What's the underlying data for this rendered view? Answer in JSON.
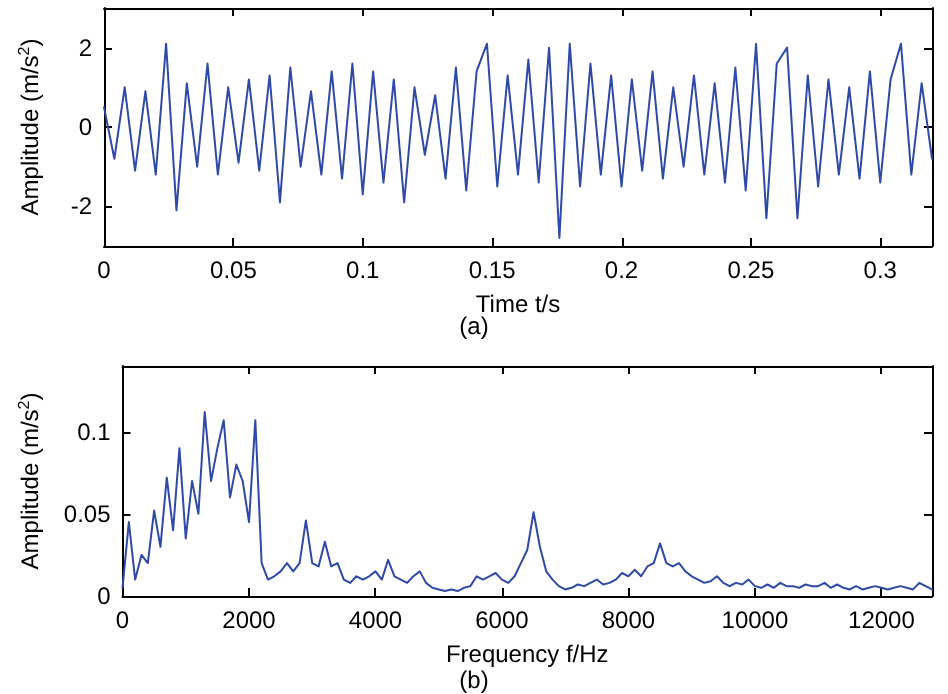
{
  "chart_data": [
    {
      "type": "line",
      "xlabel": "Time t/s",
      "ylabel": "Amplitude (m/s$^{2}$)",
      "annotations": [
        "(a)"
      ],
      "xlim": [
        0,
        0.32
      ],
      "ylim": [
        -3,
        3
      ],
      "xticks": [
        0,
        0.05,
        0.1,
        0.15,
        0.2,
        0.25,
        0.3
      ],
      "yticks": [
        -2,
        0,
        2
      ],
      "grid": false,
      "marker": "none",
      "line_style": "solid",
      "x": [
        0,
        0.004,
        0.008,
        0.012,
        0.016,
        0.02,
        0.024,
        0.028,
        0.032,
        0.036,
        0.04,
        0.044,
        0.048,
        0.052,
        0.056,
        0.06,
        0.064,
        0.068,
        0.072,
        0.076,
        0.08,
        0.084,
        0.088,
        0.092,
        0.096,
        0.1,
        0.104,
        0.108,
        0.112,
        0.116,
        0.12,
        0.124,
        0.128,
        0.132,
        0.136,
        0.14,
        0.144,
        0.148,
        0.152,
        0.156,
        0.16,
        0.164,
        0.168,
        0.172,
        0.176,
        0.18,
        0.184,
        0.188,
        0.192,
        0.196,
        0.2,
        0.204,
        0.208,
        0.212,
        0.216,
        0.22,
        0.224,
        0.228,
        0.232,
        0.236,
        0.24,
        0.244,
        0.248,
        0.252,
        0.256,
        0.26,
        0.264,
        0.268,
        0.272,
        0.276,
        0.28,
        0.284,
        0.288,
        0.292,
        0.296,
        0.3,
        0.304,
        0.308,
        0.312,
        0.316,
        0.32
      ],
      "series": [
        {
          "color": "#2e4aa6",
          "values": [
            0.5,
            -0.8,
            1.0,
            -1.1,
            0.9,
            -1.2,
            2.1,
            -2.1,
            1.1,
            -1.0,
            1.6,
            -1.2,
            1.0,
            -0.9,
            1.2,
            -1.1,
            1.3,
            -1.9,
            1.5,
            -1.0,
            0.9,
            -1.2,
            1.4,
            -1.3,
            1.6,
            -1.7,
            1.4,
            -1.4,
            1.2,
            -1.9,
            1.0,
            -0.7,
            0.8,
            -1.3,
            1.5,
            -1.6,
            1.4,
            2.1,
            -1.5,
            1.3,
            -1.2,
            1.7,
            -1.4,
            2.0,
            -2.8,
            2.1,
            -1.5,
            1.6,
            -1.2,
            1.3,
            -1.5,
            1.2,
            -1.1,
            1.4,
            -1.3,
            1.0,
            -1.0,
            1.3,
            -1.2,
            1.1,
            -1.4,
            1.5,
            -1.6,
            2.1,
            -2.3,
            1.6,
            2.0,
            -2.3,
            1.3,
            -1.5,
            1.2,
            -1.2,
            1.0,
            -1.3,
            1.4,
            -1.4,
            1.2,
            2.1,
            -1.2,
            1.1,
            -0.8
          ]
        }
      ]
    },
    {
      "type": "line",
      "xlabel": "Frequency f/Hz",
      "ylabel": "Amplitude (m/s$^{2}$)",
      "annotations": [
        "(b)"
      ],
      "xlim": [
        0,
        12800
      ],
      "ylim": [
        0,
        0.14
      ],
      "xticks": [
        0,
        2000,
        4000,
        6000,
        8000,
        10000,
        12000
      ],
      "yticks": [
        0,
        0.05,
        0.1
      ],
      "grid": false,
      "marker": "none",
      "line_style": "solid",
      "x": [
        0,
        100,
        200,
        300,
        400,
        500,
        600,
        700,
        800,
        900,
        1000,
        1100,
        1200,
        1300,
        1400,
        1500,
        1600,
        1700,
        1800,
        1900,
        2000,
        2100,
        2200,
        2300,
        2400,
        2500,
        2600,
        2700,
        2800,
        2900,
        3000,
        3100,
        3200,
        3300,
        3400,
        3500,
        3600,
        3700,
        3800,
        3900,
        4000,
        4100,
        4200,
        4300,
        4400,
        4500,
        4600,
        4700,
        4800,
        4900,
        5000,
        5100,
        5200,
        5300,
        5400,
        5500,
        5600,
        5700,
        5800,
        5900,
        6000,
        6100,
        6200,
        6300,
        6400,
        6500,
        6600,
        6700,
        6800,
        6900,
        7000,
        7100,
        7200,
        7300,
        7400,
        7500,
        7600,
        7700,
        7800,
        7900,
        8000,
        8100,
        8200,
        8300,
        8400,
        8500,
        8600,
        8700,
        8800,
        8900,
        9000,
        9100,
        9200,
        9300,
        9400,
        9500,
        9600,
        9700,
        9800,
        9900,
        10000,
        10100,
        10200,
        10300,
        10400,
        10500,
        10600,
        10700,
        10800,
        10900,
        11000,
        11100,
        11200,
        11300,
        11400,
        11500,
        11600,
        11700,
        11800,
        11900,
        12000,
        12100,
        12200,
        12300,
        12400,
        12500,
        12600,
        12700,
        12800
      ],
      "series": [
        {
          "color": "#2e4aa6",
          "values": [
            0.005,
            0.045,
            0.01,
            0.025,
            0.02,
            0.052,
            0.03,
            0.072,
            0.04,
            0.09,
            0.035,
            0.07,
            0.05,
            0.112,
            0.07,
            0.09,
            0.107,
            0.06,
            0.08,
            0.07,
            0.045,
            0.107,
            0.02,
            0.01,
            0.012,
            0.015,
            0.02,
            0.015,
            0.02,
            0.046,
            0.02,
            0.018,
            0.033,
            0.018,
            0.02,
            0.01,
            0.008,
            0.012,
            0.01,
            0.012,
            0.015,
            0.01,
            0.022,
            0.012,
            0.01,
            0.008,
            0.012,
            0.015,
            0.008,
            0.005,
            0.004,
            0.003,
            0.004,
            0.003,
            0.005,
            0.006,
            0.012,
            0.01,
            0.012,
            0.014,
            0.01,
            0.008,
            0.012,
            0.02,
            0.028,
            0.051,
            0.03,
            0.015,
            0.01,
            0.006,
            0.004,
            0.005,
            0.007,
            0.006,
            0.008,
            0.01,
            0.007,
            0.008,
            0.01,
            0.014,
            0.012,
            0.016,
            0.012,
            0.018,
            0.02,
            0.032,
            0.02,
            0.018,
            0.02,
            0.015,
            0.012,
            0.01,
            0.008,
            0.009,
            0.012,
            0.008,
            0.006,
            0.008,
            0.007,
            0.01,
            0.006,
            0.005,
            0.007,
            0.005,
            0.008,
            0.006,
            0.006,
            0.005,
            0.007,
            0.006,
            0.006,
            0.008,
            0.005,
            0.007,
            0.005,
            0.004,
            0.006,
            0.004,
            0.005,
            0.006,
            0.005,
            0.004,
            0.005,
            0.006,
            0.005,
            0.004,
            0.008,
            0.006,
            0.004
          ]
        }
      ]
    }
  ]
}
